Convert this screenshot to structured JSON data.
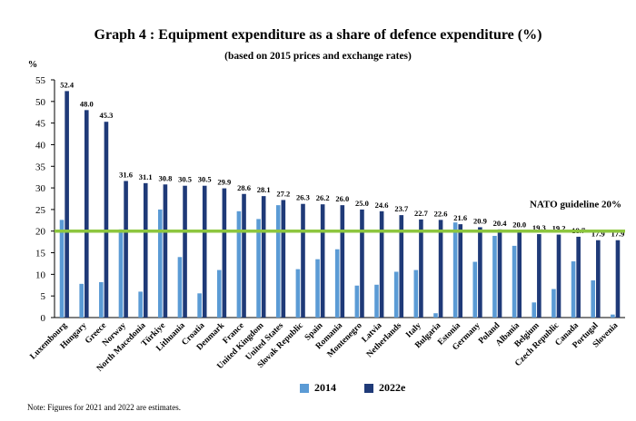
{
  "chart_data": {
    "type": "bar",
    "title": "Graph 4 : Equipment expenditure as a share of defence expenditure (%)",
    "subtitle": "(based on 2015 prices and exchange rates)",
    "ylabel": "%",
    "ylim": [
      0,
      55
    ],
    "yticks": [
      0,
      5,
      10,
      15,
      20,
      25,
      30,
      35,
      40,
      45,
      50,
      55
    ],
    "grid": false,
    "legend_position": "bottom",
    "categories": [
      "Luxembourg",
      "Hungary",
      "Greece",
      "Norway",
      "North Macedonia",
      "Türkiye",
      "Lithuania",
      "Croatia",
      "Denmark",
      "France",
      "United Kingdom",
      "United States",
      "Slovak Republic",
      "Spain",
      "Romania",
      "Montenegro",
      "Latvia",
      "Netherlands",
      "Italy",
      "Bulgaria",
      "Estonia",
      "Germany",
      "Poland",
      "Albania",
      "Belgium",
      "Czech Republic",
      "Canada",
      "Portugal",
      "Slovenia"
    ],
    "series": [
      {
        "name": "2014",
        "color": "#5b9bd5",
        "values": [
          22.6,
          7.8,
          8.2,
          20.4,
          6.0,
          25.0,
          14.0,
          5.6,
          11.0,
          24.6,
          22.8,
          26.0,
          11.2,
          13.5,
          15.8,
          7.4,
          7.6,
          10.6,
          11.0,
          1.0,
          22.0,
          12.9,
          18.9,
          16.6,
          3.5,
          6.6,
          13.0,
          8.6,
          0.7
        ],
        "labels": []
      },
      {
        "name": "2022e",
        "color": "#1f3a78",
        "values": [
          52.4,
          48.0,
          45.3,
          31.6,
          31.1,
          30.8,
          30.5,
          30.5,
          29.9,
          28.6,
          28.1,
          27.2,
          26.3,
          26.2,
          26.0,
          25.0,
          24.6,
          23.7,
          22.7,
          22.6,
          21.6,
          20.9,
          20.4,
          20.0,
          19.3,
          19.2,
          18.7,
          17.9,
          17.9
        ],
        "labels": [
          "52.4",
          "48.0",
          "45.3",
          "31.6",
          "31.1",
          "30.8",
          "30.5",
          "30.5",
          "29.9",
          "28.6",
          "28.1",
          "27.2",
          "26.3",
          "26.2",
          "26.0",
          "25.0",
          "24.6",
          "23.7",
          "22.7",
          "22.6",
          "21.6",
          "20.9",
          "20.4",
          "20.0",
          "19.3",
          "19.2",
          "18.7",
          "17.9",
          "17.9"
        ]
      }
    ],
    "guideline": {
      "value": 20,
      "label": "NATO guideline 20%",
      "color": "#8dc63f"
    }
  },
  "note": "Note: Figures for 2021 and 2022 are estimates."
}
